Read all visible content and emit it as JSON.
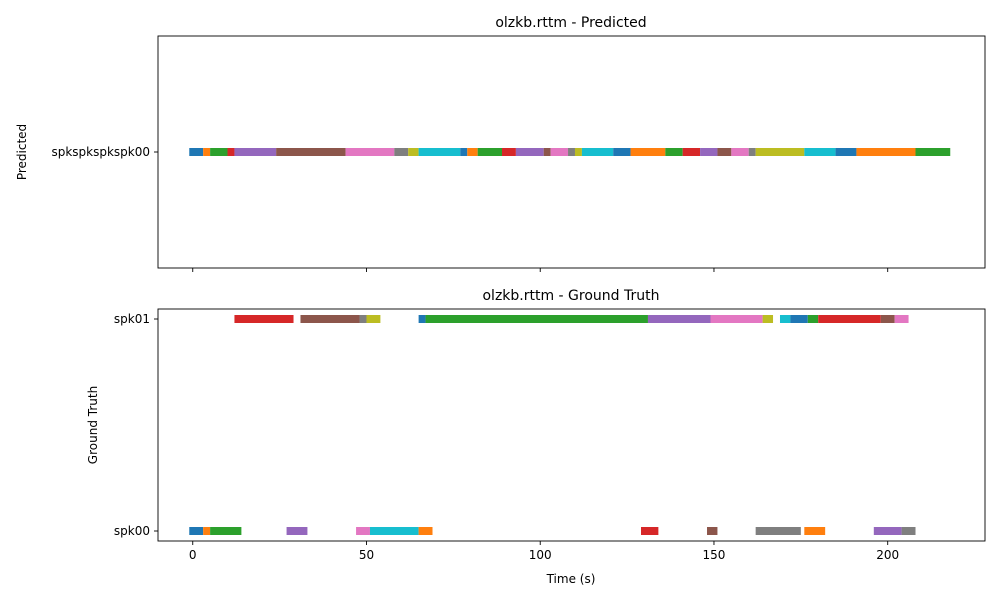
{
  "palette": [
    "#1f77b4",
    "#ff7f0e",
    "#2ca02c",
    "#d62728",
    "#9467bd",
    "#8c564b",
    "#e377c2",
    "#7f7f7f",
    "#bcbd22",
    "#17becf"
  ],
  "chart_data": [
    {
      "type": "timeline",
      "title": "olzkb.rttm - Predicted",
      "xlabel": "",
      "ylabel": "Predicted",
      "xlim": [
        -10,
        228
      ],
      "x_ticks": [
        0,
        50,
        100,
        150,
        200
      ],
      "x_tick_labels": [],
      "categories": [
        "spkspkspkspk00"
      ],
      "segments": [
        {
          "speaker": 0,
          "start": -1,
          "end": 3,
          "color": 0
        },
        {
          "speaker": 0,
          "start": 3,
          "end": 5,
          "color": 1
        },
        {
          "speaker": 0,
          "start": 5,
          "end": 10,
          "color": 2
        },
        {
          "speaker": 0,
          "start": 10,
          "end": 12,
          "color": 3
        },
        {
          "speaker": 0,
          "start": 12,
          "end": 24,
          "color": 4
        },
        {
          "speaker": 0,
          "start": 24,
          "end": 44,
          "color": 5
        },
        {
          "speaker": 0,
          "start": 44,
          "end": 58,
          "color": 6
        },
        {
          "speaker": 0,
          "start": 58,
          "end": 62,
          "color": 7
        },
        {
          "speaker": 0,
          "start": 62,
          "end": 65,
          "color": 8
        },
        {
          "speaker": 0,
          "start": 65,
          "end": 77,
          "color": 9
        },
        {
          "speaker": 0,
          "start": 77,
          "end": 79,
          "color": 0
        },
        {
          "speaker": 0,
          "start": 79,
          "end": 82,
          "color": 1
        },
        {
          "speaker": 0,
          "start": 82,
          "end": 89,
          "color": 2
        },
        {
          "speaker": 0,
          "start": 89,
          "end": 93,
          "color": 3
        },
        {
          "speaker": 0,
          "start": 93,
          "end": 101,
          "color": 4
        },
        {
          "speaker": 0,
          "start": 101,
          "end": 103,
          "color": 5
        },
        {
          "speaker": 0,
          "start": 103,
          "end": 108,
          "color": 6
        },
        {
          "speaker": 0,
          "start": 108,
          "end": 110,
          "color": 7
        },
        {
          "speaker": 0,
          "start": 110,
          "end": 112,
          "color": 8
        },
        {
          "speaker": 0,
          "start": 112,
          "end": 121,
          "color": 9
        },
        {
          "speaker": 0,
          "start": 121,
          "end": 126,
          "color": 0
        },
        {
          "speaker": 0,
          "start": 126,
          "end": 136,
          "color": 1
        },
        {
          "speaker": 0,
          "start": 136,
          "end": 141,
          "color": 2
        },
        {
          "speaker": 0,
          "start": 141,
          "end": 146,
          "color": 3
        },
        {
          "speaker": 0,
          "start": 146,
          "end": 151,
          "color": 4
        },
        {
          "speaker": 0,
          "start": 151,
          "end": 155,
          "color": 5
        },
        {
          "speaker": 0,
          "start": 155,
          "end": 160,
          "color": 6
        },
        {
          "speaker": 0,
          "start": 160,
          "end": 162,
          "color": 7
        },
        {
          "speaker": 0,
          "start": 162,
          "end": 176,
          "color": 8
        },
        {
          "speaker": 0,
          "start": 176,
          "end": 185,
          "color": 9
        },
        {
          "speaker": 0,
          "start": 185,
          "end": 191,
          "color": 0
        },
        {
          "speaker": 0,
          "start": 191,
          "end": 208,
          "color": 1
        },
        {
          "speaker": 0,
          "start": 208,
          "end": 218,
          "color": 2
        }
      ]
    },
    {
      "type": "timeline",
      "title": "olzkb.rttm - Ground Truth",
      "xlabel": "Time (s)",
      "ylabel": "Ground Truth",
      "xlim": [
        -10,
        228
      ],
      "x_ticks": [
        0,
        50,
        100,
        150,
        200
      ],
      "x_tick_labels": [
        "0",
        "50",
        "100",
        "150",
        "200"
      ],
      "categories": [
        "spk00",
        "spk01"
      ],
      "segments": [
        {
          "speaker": 1,
          "start": 12,
          "end": 29,
          "color": 3
        },
        {
          "speaker": 1,
          "start": 31,
          "end": 48,
          "color": 5
        },
        {
          "speaker": 1,
          "start": 48,
          "end": 50,
          "color": 7
        },
        {
          "speaker": 1,
          "start": 50,
          "end": 54,
          "color": 8
        },
        {
          "speaker": 1,
          "start": 65,
          "end": 67,
          "color": 0
        },
        {
          "speaker": 1,
          "start": 67,
          "end": 131,
          "color": 2
        },
        {
          "speaker": 1,
          "start": 131,
          "end": 149,
          "color": 4
        },
        {
          "speaker": 1,
          "start": 149,
          "end": 164,
          "color": 6
        },
        {
          "speaker": 1,
          "start": 164,
          "end": 167,
          "color": 8
        },
        {
          "speaker": 1,
          "start": 169,
          "end": 172,
          "color": 9
        },
        {
          "speaker": 1,
          "start": 172,
          "end": 177,
          "color": 0
        },
        {
          "speaker": 1,
          "start": 177,
          "end": 180,
          "color": 2
        },
        {
          "speaker": 1,
          "start": 180,
          "end": 198,
          "color": 3
        },
        {
          "speaker": 1,
          "start": 198,
          "end": 202,
          "color": 5
        },
        {
          "speaker": 1,
          "start": 202,
          "end": 206,
          "color": 6
        },
        {
          "speaker": 0,
          "start": -1,
          "end": 3,
          "color": 0
        },
        {
          "speaker": 0,
          "start": 3,
          "end": 5,
          "color": 1
        },
        {
          "speaker": 0,
          "start": 5,
          "end": 14,
          "color": 2
        },
        {
          "speaker": 0,
          "start": 27,
          "end": 33,
          "color": 4
        },
        {
          "speaker": 0,
          "start": 47,
          "end": 51,
          "color": 6
        },
        {
          "speaker": 0,
          "start": 51,
          "end": 65,
          "color": 9
        },
        {
          "speaker": 0,
          "start": 65,
          "end": 69,
          "color": 1
        },
        {
          "speaker": 0,
          "start": 129,
          "end": 134,
          "color": 3
        },
        {
          "speaker": 0,
          "start": 148,
          "end": 151,
          "color": 5
        },
        {
          "speaker": 0,
          "start": 162,
          "end": 175,
          "color": 7
        },
        {
          "speaker": 0,
          "start": 176,
          "end": 182,
          "color": 1
        },
        {
          "speaker": 0,
          "start": 196,
          "end": 204,
          "color": 4
        },
        {
          "speaker": 0,
          "start": 204,
          "end": 208,
          "color": 7
        }
      ]
    }
  ]
}
